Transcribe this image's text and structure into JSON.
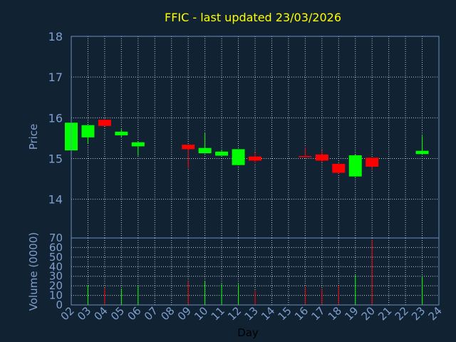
{
  "chart_data": {
    "type": "candlestick",
    "title": "FFIC - last updated 23/03/2026",
    "xlabel": "Day",
    "ylabel_price": "Price",
    "ylabel_volume": "Volume (0000)",
    "categories": [
      "02",
      "03",
      "04",
      "05",
      "06",
      "07",
      "08",
      "09",
      "10",
      "11",
      "12",
      "13",
      "14",
      "15",
      "16",
      "17",
      "18",
      "19",
      "20",
      "21",
      "22",
      "23",
      "24"
    ],
    "price_ticks": [
      14,
      15,
      16,
      17,
      18
    ],
    "price_ylim": [
      13.05,
      18
    ],
    "volume_ticks": [
      0,
      10,
      20,
      30,
      40,
      50,
      60,
      70
    ],
    "volume_ylim": [
      0,
      70
    ],
    "grid": true,
    "colors": {
      "background": "#112233",
      "axis": "#6a8fc0",
      "grid": "#ffffff",
      "title": "#ffff00",
      "tick_text": "#7f9fcf",
      "up": "#00ff00",
      "down": "#ff0000"
    },
    "candles": [
      {
        "day": "02",
        "open": 15.2,
        "high": 15.88,
        "low": 15.2,
        "close": 15.88
      },
      {
        "day": "03",
        "open": 15.52,
        "high": 15.82,
        "low": 15.37,
        "close": 15.82
      },
      {
        "day": "04",
        "open": 15.95,
        "high": 15.98,
        "low": 15.8,
        "close": 15.8
      },
      {
        "day": "05",
        "open": 15.57,
        "high": 15.72,
        "low": 15.52,
        "close": 15.66
      },
      {
        "day": "06",
        "open": 15.3,
        "high": 15.41,
        "low": 15.07,
        "close": 15.4
      },
      {
        "day": "09",
        "open": 15.34,
        "high": 15.34,
        "low": 14.77,
        "close": 15.23
      },
      {
        "day": "10",
        "open": 15.13,
        "high": 15.62,
        "low": 15.13,
        "close": 15.26
      },
      {
        "day": "11",
        "open": 15.07,
        "high": 15.22,
        "low": 15.07,
        "close": 15.17
      },
      {
        "day": "12",
        "open": 14.84,
        "high": 15.23,
        "low": 14.84,
        "close": 15.23
      },
      {
        "day": "13",
        "open": 15.05,
        "high": 15.15,
        "low": 14.88,
        "close": 14.95
      },
      {
        "day": "16",
        "open": 15.06,
        "high": 15.27,
        "low": 15.04,
        "close": 15.05
      },
      {
        "day": "17",
        "open": 15.1,
        "high": 15.2,
        "low": 14.9,
        "close": 14.95
      },
      {
        "day": "18",
        "open": 14.87,
        "high": 14.87,
        "low": 14.63,
        "close": 14.65
      },
      {
        "day": "19",
        "open": 14.56,
        "high": 15.1,
        "low": 14.55,
        "close": 15.08
      },
      {
        "day": "20",
        "open": 15.02,
        "high": 15.02,
        "low": 14.72,
        "close": 14.8
      },
      {
        "day": "23",
        "open": 15.11,
        "high": 15.56,
        "low": 15.11,
        "close": 15.19
      }
    ],
    "volumes": [
      {
        "day": "03",
        "value": 21,
        "direction": "up"
      },
      {
        "day": "04",
        "value": 18,
        "direction": "down"
      },
      {
        "day": "05",
        "value": 17,
        "direction": "up"
      },
      {
        "day": "06",
        "value": 20,
        "direction": "up"
      },
      {
        "day": "09",
        "value": 25,
        "direction": "down"
      },
      {
        "day": "10",
        "value": 25,
        "direction": "up"
      },
      {
        "day": "11",
        "value": 22,
        "direction": "up"
      },
      {
        "day": "12",
        "value": 22,
        "direction": "up"
      },
      {
        "day": "13",
        "value": 15,
        "direction": "down"
      },
      {
        "day": "16",
        "value": 19,
        "direction": "down"
      },
      {
        "day": "17",
        "value": 17,
        "direction": "down"
      },
      {
        "day": "18",
        "value": 20,
        "direction": "down"
      },
      {
        "day": "19",
        "value": 31,
        "direction": "up"
      },
      {
        "day": "20",
        "value": 68,
        "direction": "down"
      },
      {
        "day": "23",
        "value": 30,
        "direction": "up"
      }
    ]
  }
}
